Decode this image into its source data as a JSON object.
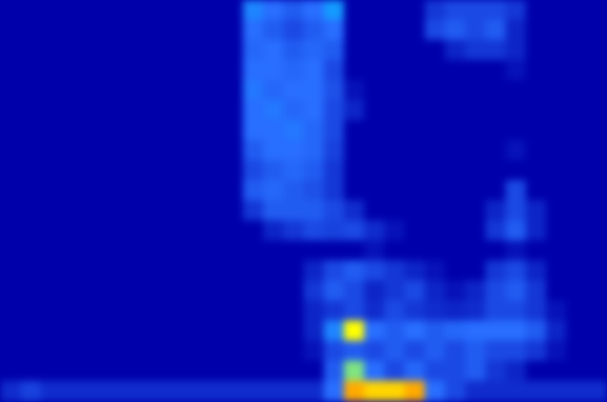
{
  "chart_data": {
    "type": "heatmap",
    "xlim": [
      0,
      30
    ],
    "ylim": [
      0,
      20
    ],
    "color_range": [
      0,
      1
    ],
    "tick_labels": false,
    "cells": [
      [
        0,
        0,
        0,
        0,
        0,
        0,
        0,
        0,
        0,
        0,
        0,
        0,
        0.35,
        0.3,
        0.25,
        0.3,
        0.4,
        0,
        0,
        0,
        0,
        0.15,
        0.2,
        0.2,
        0.2,
        0.15,
        0,
        0,
        0,
        0
      ],
      [
        0,
        0,
        0,
        0,
        0,
        0,
        0,
        0,
        0,
        0,
        0,
        0,
        0.3,
        0.25,
        0.2,
        0.25,
        0.3,
        0,
        0,
        0,
        0,
        0.2,
        0.25,
        0.2,
        0.25,
        0.1,
        0,
        0,
        0,
        0
      ],
      [
        0,
        0,
        0,
        0,
        0,
        0,
        0,
        0,
        0,
        0,
        0,
        0,
        0.28,
        0.3,
        0.25,
        0.28,
        0.25,
        0,
        0,
        0,
        0,
        0,
        0.1,
        0.15,
        0.15,
        0.1,
        0,
        0,
        0,
        0
      ],
      [
        0,
        0,
        0,
        0,
        0,
        0,
        0,
        0,
        0,
        0,
        0,
        0,
        0.3,
        0.3,
        0.28,
        0.3,
        0.2,
        0,
        0,
        0,
        0,
        0,
        0,
        0,
        0,
        0.05,
        0,
        0,
        0,
        0
      ],
      [
        0,
        0,
        0,
        0,
        0,
        0,
        0,
        0,
        0,
        0,
        0,
        0,
        0.32,
        0.28,
        0.3,
        0.3,
        0.22,
        0.05,
        0,
        0,
        0,
        0,
        0,
        0,
        0,
        0,
        0,
        0,
        0,
        0
      ],
      [
        0,
        0,
        0,
        0,
        0,
        0,
        0,
        0,
        0,
        0,
        0,
        0,
        0.3,
        0.32,
        0.28,
        0.3,
        0.2,
        0.1,
        0,
        0,
        0,
        0,
        0,
        0,
        0,
        0,
        0,
        0,
        0,
        0
      ],
      [
        0,
        0,
        0,
        0,
        0,
        0,
        0,
        0,
        0,
        0,
        0,
        0,
        0.3,
        0.3,
        0.32,
        0.28,
        0.2,
        0,
        0,
        0,
        0,
        0,
        0,
        0,
        0,
        0,
        0,
        0,
        0,
        0
      ],
      [
        0,
        0,
        0,
        0,
        0,
        0,
        0,
        0,
        0,
        0,
        0,
        0,
        0.25,
        0.3,
        0.3,
        0.28,
        0.18,
        0,
        0,
        0,
        0,
        0,
        0,
        0,
        0,
        0.05,
        0,
        0,
        0,
        0
      ],
      [
        0,
        0,
        0,
        0,
        0,
        0,
        0,
        0,
        0,
        0,
        0,
        0,
        0.2,
        0.25,
        0.28,
        0.25,
        0.15,
        0,
        0,
        0,
        0,
        0,
        0,
        0,
        0,
        0,
        0,
        0,
        0,
        0
      ],
      [
        0,
        0,
        0,
        0,
        0,
        0,
        0,
        0,
        0,
        0,
        0,
        0,
        0.25,
        0.28,
        0.25,
        0.22,
        0.15,
        0,
        0,
        0,
        0,
        0,
        0,
        0,
        0,
        0.2,
        0,
        0,
        0,
        0
      ],
      [
        0,
        0,
        0,
        0,
        0,
        0,
        0,
        0,
        0,
        0,
        0,
        0,
        0.15,
        0.25,
        0.25,
        0.25,
        0.2,
        0.12,
        0,
        0,
        0,
        0,
        0,
        0,
        0.1,
        0.2,
        0.1,
        0,
        0,
        0
      ],
      [
        0,
        0,
        0,
        0,
        0,
        0,
        0,
        0,
        0,
        0,
        0,
        0,
        0,
        0.1,
        0.15,
        0.2,
        0.18,
        0.2,
        0.12,
        0.05,
        0,
        0,
        0,
        0,
        0.15,
        0.25,
        0.1,
        0,
        0,
        0
      ],
      [
        0,
        0,
        0,
        0,
        0,
        0,
        0,
        0,
        0,
        0,
        0,
        0,
        0,
        0,
        0,
        0,
        0,
        0,
        0.05,
        0,
        0,
        0,
        0,
        0,
        0,
        0.05,
        0,
        0,
        0,
        0
      ],
      [
        0,
        0,
        0,
        0,
        0,
        0,
        0,
        0,
        0,
        0,
        0,
        0,
        0,
        0,
        0,
        0.1,
        0.2,
        0.25,
        0.2,
        0.15,
        0.1,
        0.05,
        0,
        0,
        0.15,
        0.2,
        0.1,
        0,
        0,
        0
      ],
      [
        0,
        0,
        0,
        0,
        0,
        0,
        0,
        0,
        0,
        0,
        0,
        0,
        0,
        0,
        0,
        0.15,
        0.25,
        0.2,
        0.1,
        0.15,
        0.2,
        0.1,
        0.05,
        0.1,
        0.2,
        0.25,
        0.15,
        0,
        0,
        0
      ],
      [
        0,
        0,
        0,
        0,
        0,
        0,
        0,
        0,
        0,
        0,
        0,
        0,
        0,
        0,
        0,
        0.1,
        0.15,
        0.2,
        0.12,
        0.2,
        0.15,
        0.12,
        0.1,
        0.12,
        0.2,
        0.2,
        0.15,
        0.05,
        0,
        0
      ],
      [
        0,
        0,
        0,
        0,
        0,
        0,
        0,
        0,
        0,
        0,
        0,
        0,
        0,
        0,
        0,
        0.1,
        0.35,
        0.7,
        0.3,
        0.25,
        0.3,
        0.25,
        0.28,
        0.3,
        0.3,
        0.3,
        0.25,
        0.1,
        0,
        0
      ],
      [
        0,
        0,
        0,
        0,
        0,
        0,
        0,
        0,
        0,
        0,
        0,
        0,
        0,
        0,
        0,
        0.05,
        0.2,
        0.25,
        0.2,
        0.25,
        0.2,
        0.25,
        0.2,
        0.25,
        0.2,
        0.2,
        0.15,
        0.05,
        0,
        0
      ],
      [
        0,
        0,
        0,
        0,
        0,
        0,
        0,
        0,
        0,
        0,
        0,
        0,
        0,
        0,
        0,
        0,
        0.25,
        0.6,
        0.3,
        0.2,
        0.28,
        0.2,
        0.2,
        0.25,
        0.15,
        0.1,
        0,
        0,
        0,
        0
      ],
      [
        0.12,
        0.18,
        0.12,
        0.12,
        0.12,
        0.12,
        0.12,
        0.12,
        0.12,
        0.12,
        0.12,
        0.12,
        0.12,
        0.12,
        0.12,
        0.12,
        0.3,
        0.8,
        0.75,
        0.75,
        0.8,
        0.3,
        0.2,
        0.12,
        0.12,
        0.12,
        0.12,
        0.12,
        0.12,
        0.12
      ]
    ]
  }
}
